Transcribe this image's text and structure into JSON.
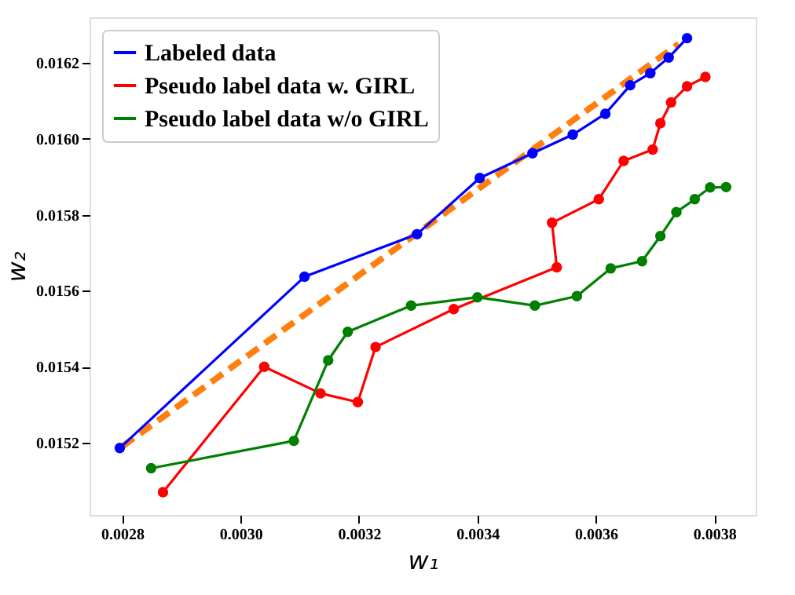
{
  "chart_data": {
    "type": "line",
    "xlabel": "w₁",
    "ylabel": "w₂",
    "xlim": [
      0.002745,
      0.00387
    ],
    "ylim": [
      0.01501,
      0.01632
    ],
    "xticks": [
      0.0028,
      {
        "value": 0.003,
        "label": "0.0030"
      },
      0.0032,
      0.0034,
      0.0036,
      0.0038
    ],
    "yticks": [
      0.0152,
      0.0154,
      0.0156,
      0.0158,
      {
        "value": 0.016,
        "label": "0.0160"
      },
      0.0162
    ],
    "grid": false,
    "legend": "top left",
    "marker": "circle",
    "line_style": "solid",
    "series": [
      {
        "name": "Labeled data",
        "color": "#0000ff",
        "x": [
          0.002796,
          0.003108,
          0.003298,
          0.003404,
          0.003493,
          0.003561,
          0.003616,
          0.003658,
          0.003692,
          0.003723,
          0.003754
        ],
        "values": [
          0.015186,
          0.015637,
          0.015749,
          0.015897,
          0.015962,
          0.016011,
          0.016066,
          0.016141,
          0.016173,
          0.016214,
          0.016265
        ]
      },
      {
        "name": "Pseudo label data w. GIRL",
        "color": "#ff0000",
        "x": [
          0.002869,
          0.00304,
          0.003135,
          0.003198,
          0.003228,
          0.00336,
          0.003534,
          0.003526,
          0.003605,
          0.003647,
          0.003696,
          0.003709,
          0.003727,
          0.003754,
          0.003785
        ],
        "values": [
          0.01507,
          0.0154,
          0.01533,
          0.015307,
          0.015452,
          0.015552,
          0.015662,
          0.015779,
          0.015841,
          0.015942,
          0.015972,
          0.016041,
          0.016096,
          0.016138,
          0.016163
        ]
      },
      {
        "name": "Pseudo label data w/o GIRL",
        "color": "#008000",
        "x": [
          0.002849,
          0.00309,
          0.003148,
          0.003181,
          0.003288,
          0.0034,
          0.003497,
          0.003568,
          0.003625,
          0.003678,
          0.003709,
          0.003736,
          0.003767,
          0.003793,
          0.00382
        ],
        "values": [
          0.015133,
          0.015205,
          0.015417,
          0.015492,
          0.015561,
          0.015583,
          0.015561,
          0.015586,
          0.015659,
          0.015678,
          0.015744,
          0.015807,
          0.015841,
          0.015872,
          0.015873
        ]
      },
      {
        "type": "line",
        "color": "#ff7f0e",
        "line_style": "dashed",
        "marker": "none",
        "x": [
          0.0028,
          0.00374
        ],
        "values": [
          0.01519,
          0.01625
        ]
      }
    ]
  }
}
